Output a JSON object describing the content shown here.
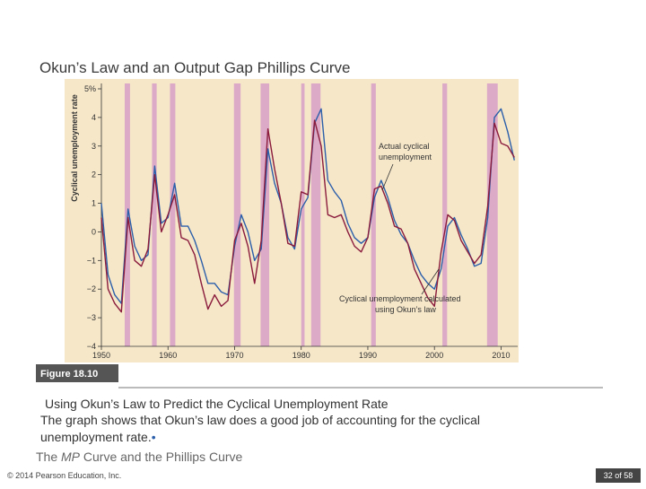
{
  "slide": {
    "title": "Okun’s Law and an Output Gap Phillips Curve",
    "figure_label": "Figure 18.10",
    "caption": "Using Okun’s Law to Predict the Cyclical Unemployment Rate",
    "body_lines": [
      "The graph shows that Okun’s law does a good job of accounting for the cyclical",
      "unemployment rate."
    ],
    "bullet": "•",
    "footer_parts": [
      "The ",
      "MP",
      " Curve and the Phillips Curve"
    ],
    "copyright": "© 2014 Pearson Education, Inc.",
    "page": "32 of 58"
  },
  "chart_data": {
    "type": "line",
    "y_label": "Cyclical unemployment rate",
    "xlim": [
      1950,
      2012.5
    ],
    "ylim": [
      -4,
      5
    ],
    "xticks": [
      1950,
      1960,
      1970,
      1980,
      1990,
      2000,
      2010
    ],
    "yticks": [
      {
        "value": -4,
        "label": "−4"
      },
      {
        "value": -3,
        "label": "−3"
      },
      {
        "value": -2,
        "label": "−2"
      },
      {
        "value": -1,
        "label": "−1"
      },
      0,
      1,
      2,
      3,
      4,
      {
        "value": 5,
        "label": "5%"
      }
    ],
    "grid": false,
    "background": "#f6e7c9",
    "recession_color": "#dcaac6",
    "recessions": [
      [
        1953.5,
        1954.3
      ],
      [
        1957.6,
        1958.3
      ],
      [
        1960.3,
        1961.1
      ],
      [
        1969.9,
        1970.9
      ],
      [
        1973.9,
        1975.2
      ],
      [
        1980.0,
        1980.5
      ],
      [
        1981.5,
        1982.9
      ],
      [
        1990.5,
        1991.2
      ],
      [
        2001.2,
        2001.9
      ],
      [
        2007.9,
        2009.5
      ]
    ],
    "x": [
      1950,
      1951,
      1952,
      1953,
      1954,
      1955,
      1956,
      1957,
      1958,
      1959,
      1960,
      1961,
      1962,
      1963,
      1964,
      1965,
      1966,
      1967,
      1968,
      1969,
      1970,
      1971,
      1972,
      1973,
      1974,
      1975,
      1976,
      1977,
      1978,
      1979,
      1980,
      1981,
      1982,
      1983,
      1984,
      1985,
      1986,
      1987,
      1988,
      1989,
      1990,
      1991,
      1992,
      1993,
      1994,
      1995,
      1996,
      1997,
      1998,
      1999,
      2000,
      2001,
      2002,
      2003,
      2004,
      2005,
      2006,
      2007,
      2008,
      2009,
      2010,
      2011,
      2012
    ],
    "series": [
      {
        "name": "Actual cyclical unemployment",
        "color": "#2c5faa",
        "values": [
          1.0,
          -1.5,
          -2.2,
          -2.5,
          0.8,
          -0.5,
          -1.0,
          -0.8,
          2.3,
          0.3,
          0.5,
          1.7,
          0.2,
          0.2,
          -0.3,
          -1.0,
          -1.8,
          -1.8,
          -2.1,
          -2.2,
          -0.5,
          0.6,
          0.0,
          -1.0,
          -0.6,
          2.9,
          1.7,
          1.0,
          -0.2,
          -0.6,
          0.8,
          1.2,
          3.8,
          4.3,
          1.8,
          1.4,
          1.1,
          0.3,
          -0.2,
          -0.4,
          -0.2,
          1.2,
          1.8,
          1.2,
          0.4,
          -0.1,
          -0.4,
          -1.0,
          -1.5,
          -1.8,
          -2.0,
          -1.3,
          0.2,
          0.5,
          -0.1,
          -0.6,
          -1.2,
          -1.1,
          0.5,
          4.0,
          4.3,
          3.5,
          2.5
        ]
      },
      {
        "name": "Cyclical unemployment calculated using Okun’s law",
        "color": "#8a1b3c",
        "values": [
          0.5,
          -2.0,
          -2.5,
          -2.8,
          0.5,
          -1.0,
          -1.2,
          -0.6,
          2.0,
          0.0,
          0.6,
          1.3,
          -0.2,
          -0.3,
          -0.8,
          -1.8,
          -2.7,
          -2.2,
          -2.6,
          -2.4,
          -0.3,
          0.3,
          -0.5,
          -1.8,
          -0.3,
          3.6,
          2.2,
          1.0,
          -0.4,
          -0.5,
          1.4,
          1.3,
          3.9,
          3.0,
          0.6,
          0.5,
          0.6,
          0.0,
          -0.5,
          -0.7,
          -0.2,
          1.5,
          1.6,
          1.0,
          0.2,
          0.1,
          -0.4,
          -1.3,
          -1.8,
          -2.3,
          -2.6,
          -0.7,
          0.6,
          0.4,
          -0.3,
          -0.7,
          -1.1,
          -0.8,
          0.9,
          3.8,
          3.1,
          3.0,
          2.6
        ]
      }
    ],
    "annotations": [
      {
        "lines": [
          "Actual cyclical",
          "unemployment"
        ]
      },
      {
        "lines": [
          "Cyclical unemployment calculated",
          "using Okun’s law"
        ]
      }
    ]
  }
}
